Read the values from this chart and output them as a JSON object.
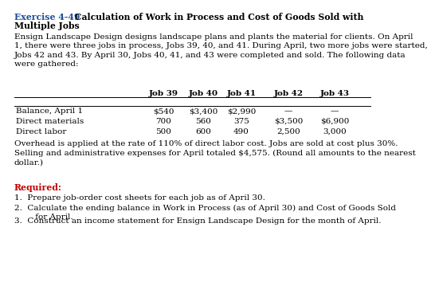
{
  "title_blue": "Exercise 4-49",
  "title_rest": " Calculation of Work in Process and Cost of Goods Sold with",
  "title_line2": "Multiple Jobs",
  "body_text": "Ensign Landscape Design designs landscape plans and plants the material for clients. On April\n1, there were three jobs in process, Jobs 39, 40, and 41. During April, two more jobs were started,\nJobs 42 and 43. By April 30, Jobs 40, 41, and 43 were completed and sold. The following data\nwere gathered:",
  "col_headers": [
    "Job 39",
    "Job 40",
    "Job 41",
    "Job 42",
    "Job 43"
  ],
  "row_labels": [
    "Balance, April 1",
    "Direct materials",
    "Direct labor"
  ],
  "table_data": [
    [
      "$540",
      "$3,400",
      "$2,990",
      "—",
      "—"
    ],
    [
      "700",
      "560",
      "375",
      "$3,500",
      "$6,900"
    ],
    [
      "500",
      "600",
      "490",
      "2,500",
      "3,000"
    ]
  ],
  "footer_text": "Overhead is applied at the rate of 110% of direct labor cost. Jobs are sold at cost plus 30%.\nSelling and administrative expenses for April totaled $4,575. (Round all amounts to the nearest\ndollar.)",
  "required_label": "Required:",
  "req1": "1.  Prepare job-order cost sheets for each job as of April 30.",
  "req2": "2.  Calculate the ending balance in Work in Process (as of April 30) and Cost of Goods Sold",
  "req2b": "     for April.",
  "req3": "3.  Construct an income statement for Ensign Landscape Design for the month of April.",
  "blue_color": "#1F4E9B",
  "red_color": "#C00000",
  "black_color": "#000000",
  "bg_color": "#FFFFFF",
  "body_fontsize": 7.5,
  "title_fontsize": 7.8,
  "table_fontsize": 7.5
}
